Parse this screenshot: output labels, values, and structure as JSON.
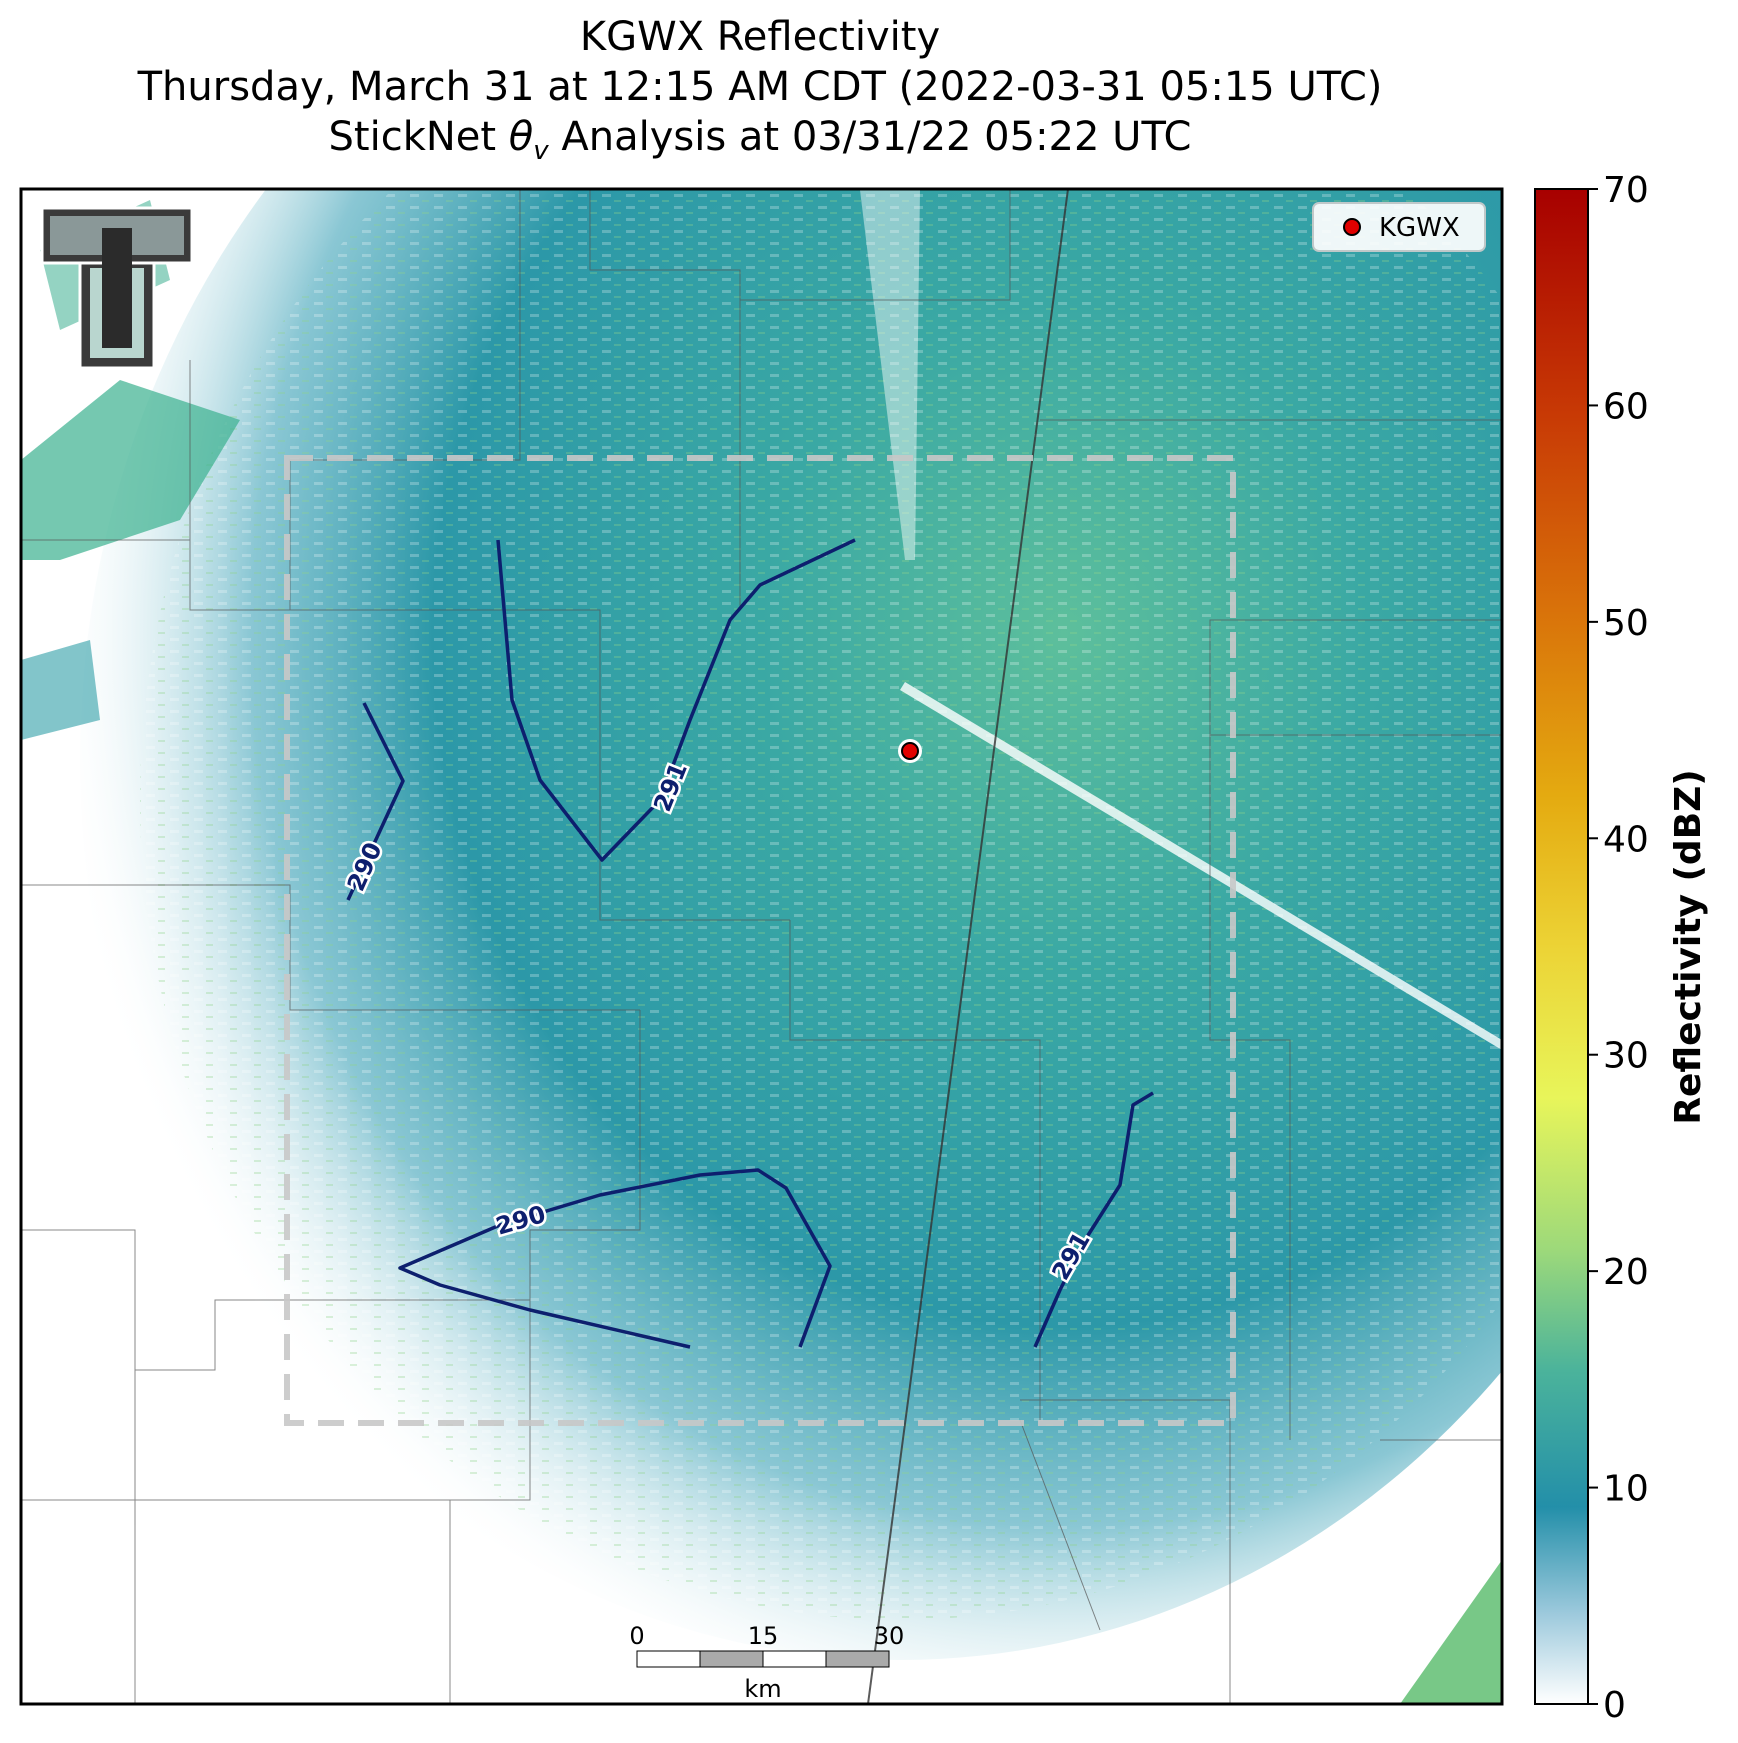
{
  "title": {
    "line1": "KGWX Reflectivity",
    "line2": "Thursday, March 31 at 12:15 AM CDT (2022-03-31 05:15 UTC)",
    "line3_prefix": "StickNet ",
    "line3_symbol": "θ",
    "line3_subscript": "v",
    "line3_suffix": " Analysis at 03/31/22 05:22 UTC"
  },
  "legend": {
    "label": "KGWX",
    "marker_color": "#e00000"
  },
  "colorbar": {
    "label": "Reflectivity (dBZ)",
    "ticks": [
      "0",
      "10",
      "20",
      "30",
      "40",
      "50",
      "60",
      "70"
    ],
    "range": [
      0,
      70
    ]
  },
  "contours": [
    {
      "label": "291",
      "color": "#0d1f6e"
    },
    {
      "label": "290",
      "color": "#0d1f6e"
    },
    {
      "label": "290",
      "color": "#0d1f6e"
    },
    {
      "label": "291",
      "color": "#0d1f6e"
    }
  ],
  "scale_bar": {
    "ticks": [
      "0",
      "15",
      "30"
    ],
    "unit": "km"
  },
  "logo": {
    "icon": "double-t-logo"
  },
  "colors": {
    "background_echo": "#2c98a8",
    "echo_light": "#7cc6a0",
    "frame": "#000000"
  }
}
